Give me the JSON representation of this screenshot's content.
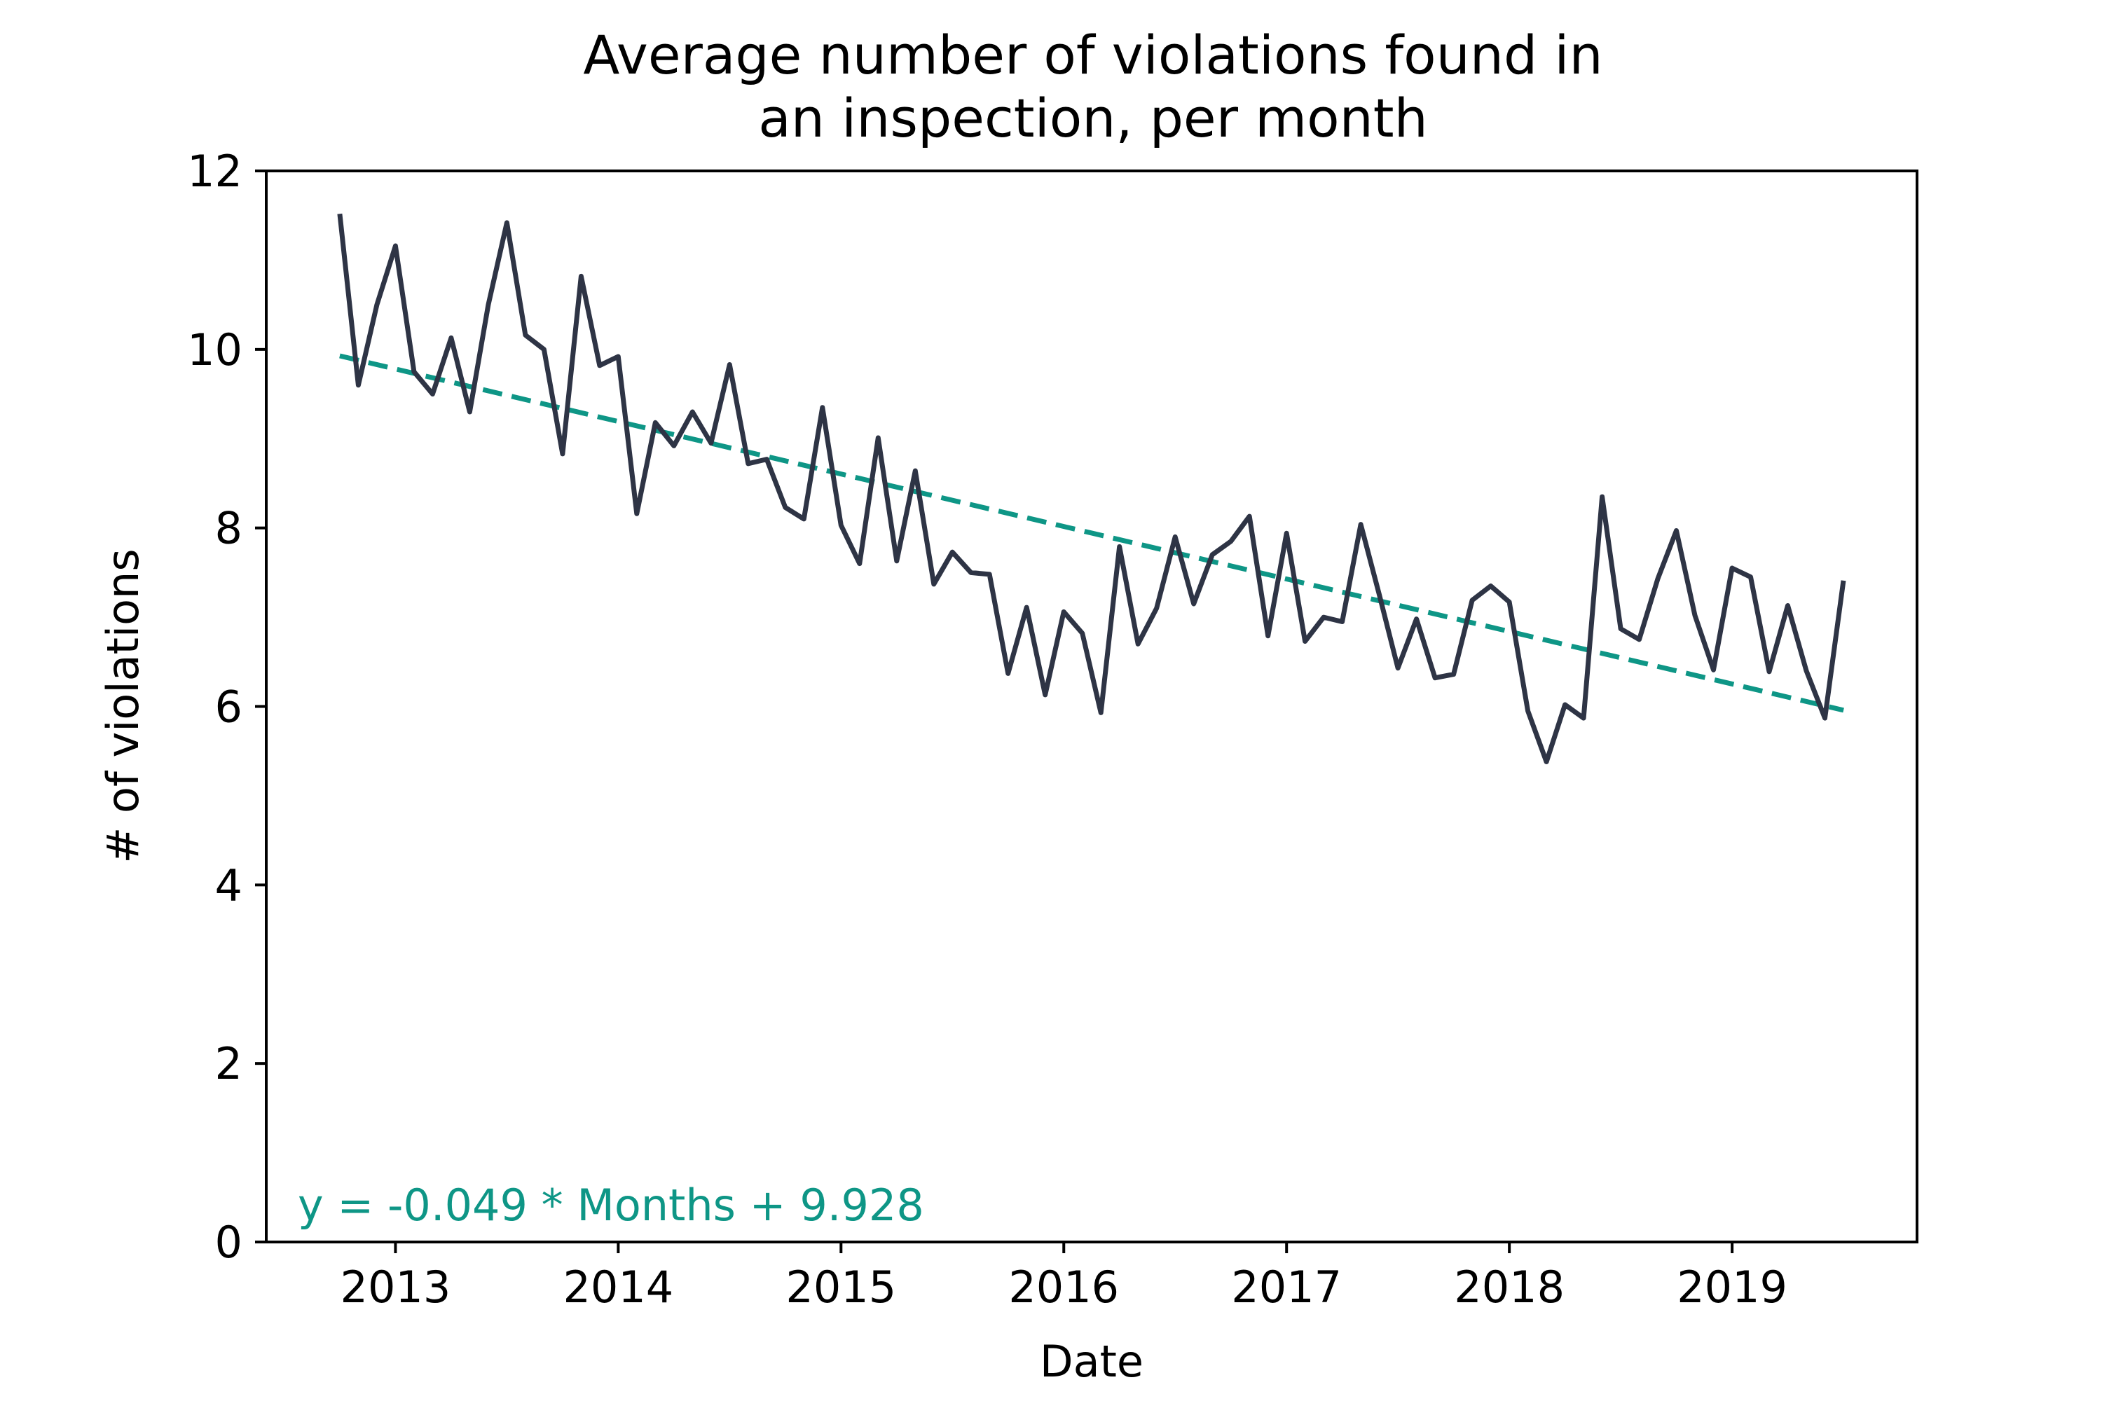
{
  "chart_data": {
    "type": "line",
    "title_lines": [
      "Average number of violations found in",
      "an inspection, per month"
    ],
    "xlabel": "Date",
    "ylabel": "# of violations",
    "ylim": [
      0,
      12
    ],
    "y_ticks": [
      0,
      2,
      4,
      6,
      8,
      10,
      12
    ],
    "x_ticks": [
      2013,
      2014,
      2015,
      2016,
      2017,
      2018,
      2019
    ],
    "xlim": [
      2012.42,
      2019.83
    ],
    "x_start": 2012.75,
    "x_step": 0.08333,
    "grid": false,
    "series": [
      {
        "color": "#2e3445",
        "values": [
          11.52,
          9.6,
          10.5,
          11.16,
          9.75,
          9.5,
          10.13,
          9.3,
          10.5,
          11.42,
          10.16,
          10.0,
          8.83,
          10.82,
          9.82,
          9.92,
          8.16,
          9.18,
          8.92,
          9.3,
          8.95,
          9.83,
          8.72,
          8.77,
          8.23,
          8.1,
          9.35,
          8.03,
          7.6,
          9.01,
          7.63,
          8.64,
          7.37,
          7.73,
          7.5,
          7.48,
          6.37,
          7.11,
          6.13,
          7.06,
          6.82,
          5.93,
          7.79,
          6.7,
          7.1,
          7.9,
          7.15,
          7.7,
          7.85,
          8.13,
          6.79,
          7.94,
          6.73,
          7.0,
          6.95,
          8.04,
          7.25,
          6.43,
          6.98,
          6.32,
          6.36,
          7.19,
          7.35,
          7.17,
          5.95,
          5.38,
          6.02,
          5.87,
          8.35,
          6.87,
          6.75,
          7.43,
          7.97,
          7.02,
          6.41,
          7.55,
          7.45,
          6.39,
          7.13,
          6.4,
          5.87,
          7.41
        ]
      },
      {
        "style": "dashed",
        "color": "#0e9686",
        "x": [
          2012.75,
          2019.5
        ],
        "values": [
          9.928,
          5.958
        ]
      }
    ],
    "annotation": "y = -0.049 * Months + 9.928"
  }
}
